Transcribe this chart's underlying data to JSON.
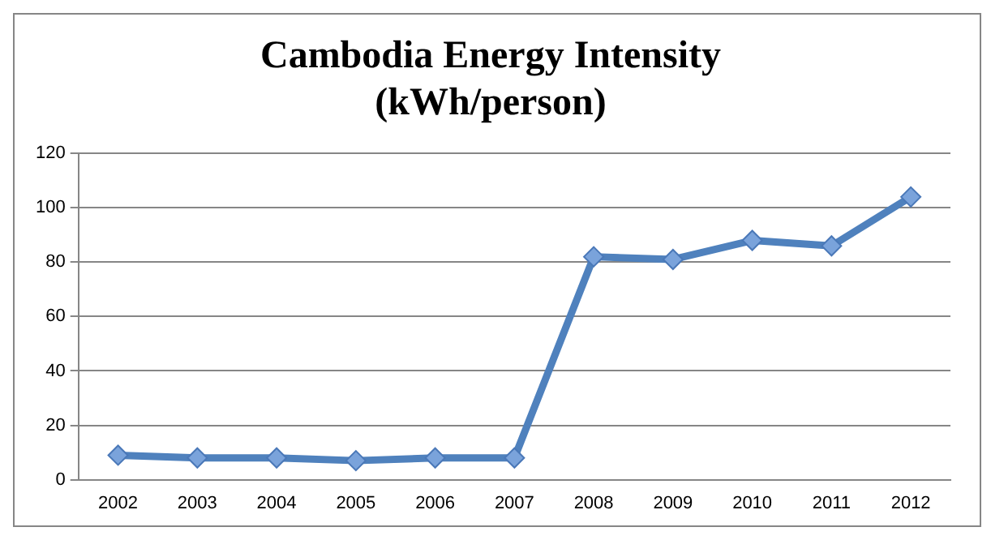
{
  "chart_data": {
    "type": "line",
    "title": [
      "Cambodia Energy Intensity",
      "(kWh/person)"
    ],
    "categories": [
      "2002",
      "2003",
      "2004",
      "2005",
      "2006",
      "2007",
      "2008",
      "2009",
      "2010",
      "2011",
      "2012"
    ],
    "series": [
      {
        "color": "#4f81bd",
        "values": [
          9,
          8,
          8,
          7,
          8,
          8,
          82,
          81,
          88,
          86,
          104
        ]
      }
    ],
    "ylim": [
      0,
      120
    ],
    "yticks": [
      0,
      20,
      40,
      60,
      80,
      100,
      120
    ],
    "grid": "y",
    "legend": false,
    "marker": "diamond",
    "line_style": "solid"
  }
}
